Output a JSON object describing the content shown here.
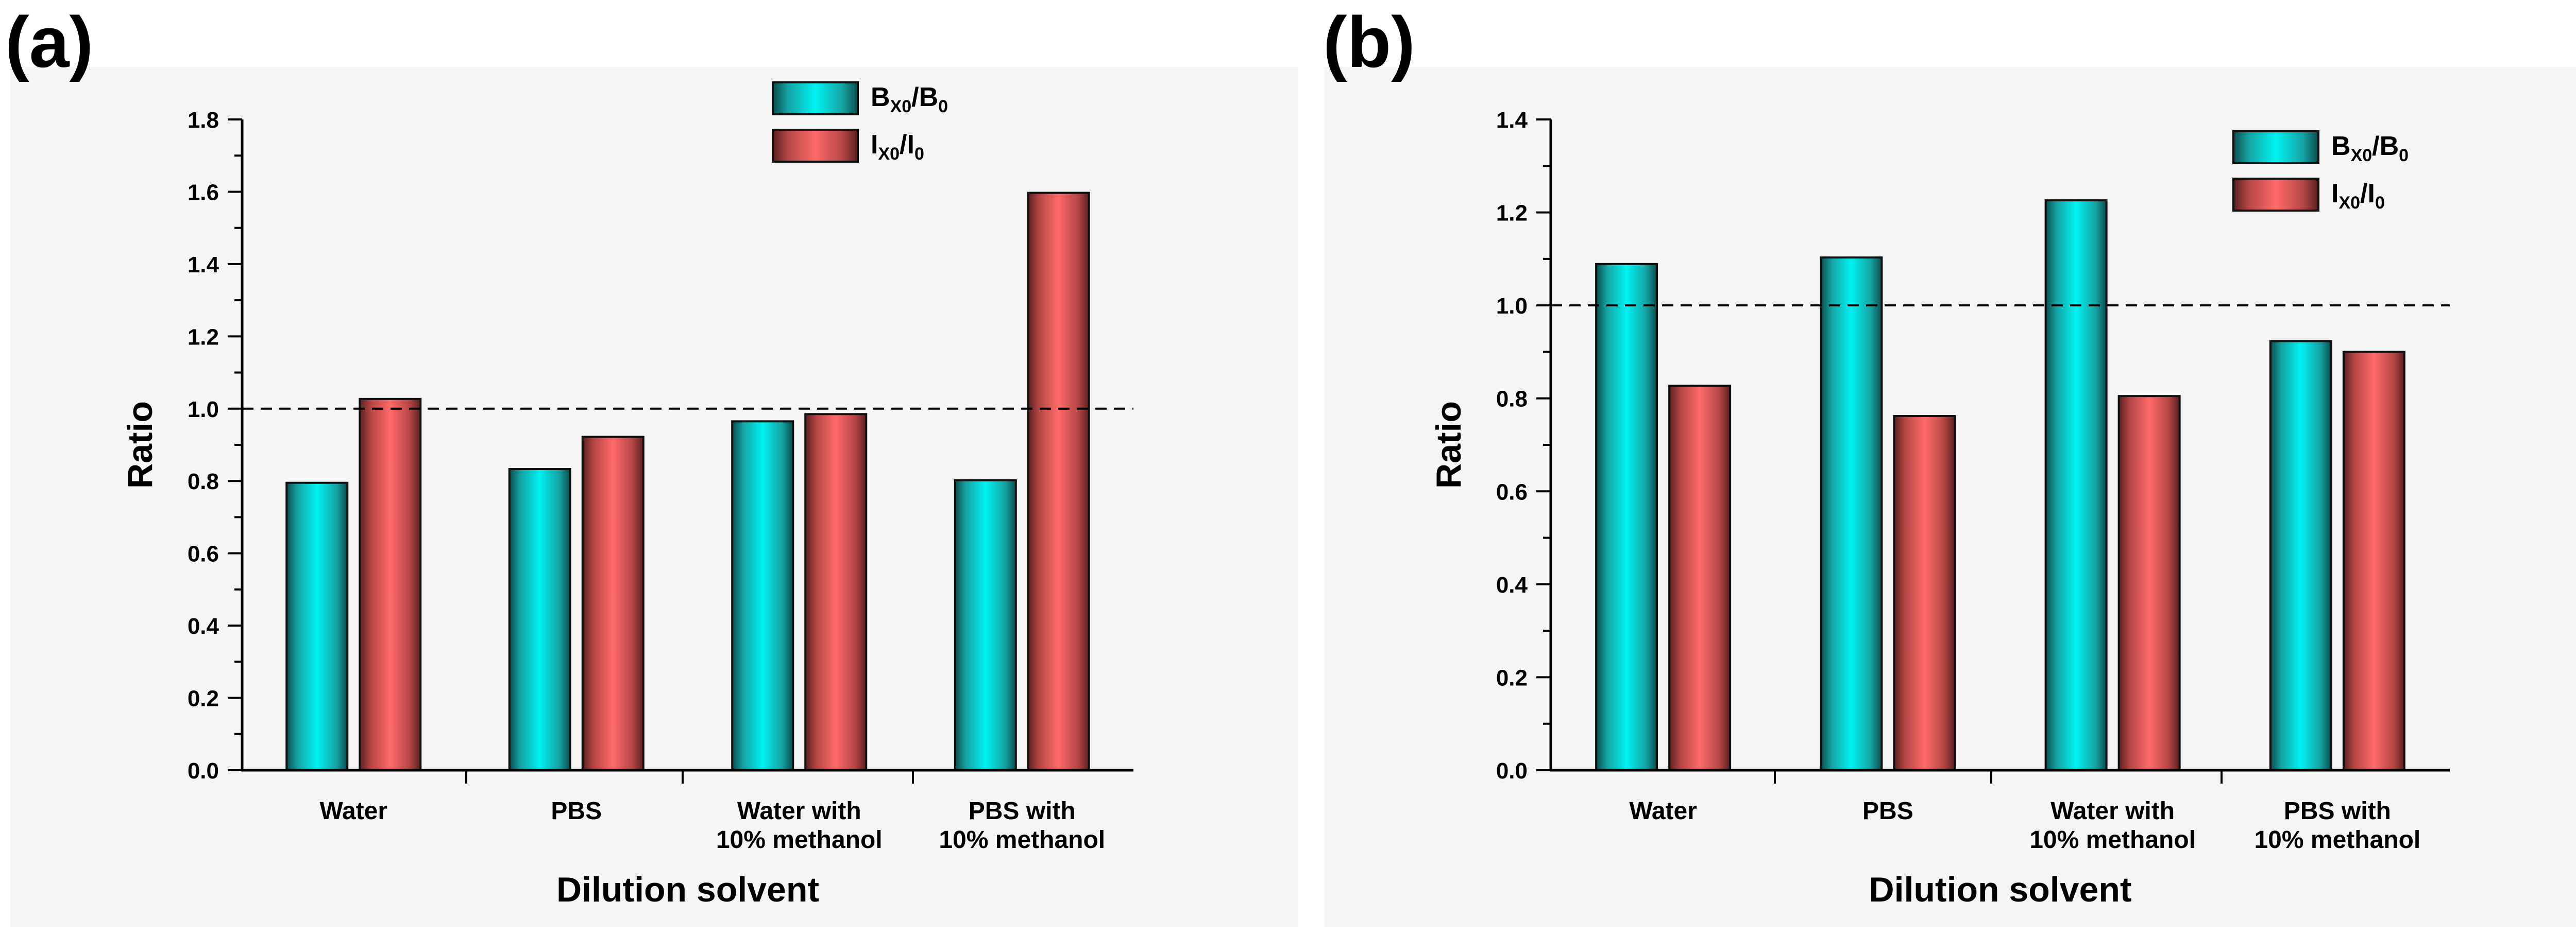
{
  "colors": {
    "series_b": "#00e5e5",
    "series_i": "#f26262",
    "background": "#f5f5f5",
    "axis": "#000000"
  },
  "chart_data": [
    {
      "panel_label": "(a)",
      "type": "bar",
      "xlabel": "Dilution solvent",
      "ylabel": "Ratio",
      "ylim": [
        0,
        1.8
      ],
      "yticks": [
        "0.0",
        "0.2",
        "0.4",
        "0.6",
        "0.8",
        "1.0",
        "1.2",
        "1.4",
        "1.6",
        "1.8"
      ],
      "reference_line": 1.0,
      "categories": [
        [
          "Water"
        ],
        [
          "PBS"
        ],
        [
          "Water with",
          "10% methanol"
        ],
        [
          "PBS with",
          "10% methanol"
        ]
      ],
      "legend": [
        {
          "main": "B",
          "sub": "X0",
          "tail": "/B",
          "sub2": "0"
        },
        {
          "main": "I",
          "sub": "X0",
          "tail": "/I",
          "sub2": "0"
        }
      ],
      "series": [
        {
          "name": "BX0/B0",
          "color_key": "series_b",
          "values": [
            0.795,
            0.833,
            0.965,
            0.802
          ]
        },
        {
          "name": "IX0/I0",
          "color_key": "series_i",
          "values": [
            1.027,
            0.922,
            0.985,
            1.597
          ]
        }
      ]
    },
    {
      "panel_label": "(b)",
      "type": "bar",
      "xlabel": "Dilution solvent",
      "ylabel": "Ratio",
      "ylim": [
        0,
        1.4
      ],
      "yticks": [
        "0.0",
        "0.2",
        "0.4",
        "0.6",
        "0.8",
        "1.0",
        "1.2",
        "1.4"
      ],
      "reference_line": 1.0,
      "categories": [
        [
          "Water"
        ],
        [
          "PBS"
        ],
        [
          "Water with",
          "10% methanol"
        ],
        [
          "PBS with",
          "10% methanol"
        ]
      ],
      "legend": [
        {
          "main": "B",
          "sub": "X0",
          "tail": "/B",
          "sub2": "0"
        },
        {
          "main": "I",
          "sub": "X0",
          "tail": "/I",
          "sub2": "0"
        }
      ],
      "series": [
        {
          "name": "BX0/B0",
          "color_key": "series_b",
          "values": [
            1.089,
            1.103,
            1.226,
            0.923
          ]
        },
        {
          "name": "IX0/I0",
          "color_key": "series_i",
          "values": [
            0.827,
            0.762,
            0.805,
            0.9
          ]
        }
      ]
    }
  ]
}
